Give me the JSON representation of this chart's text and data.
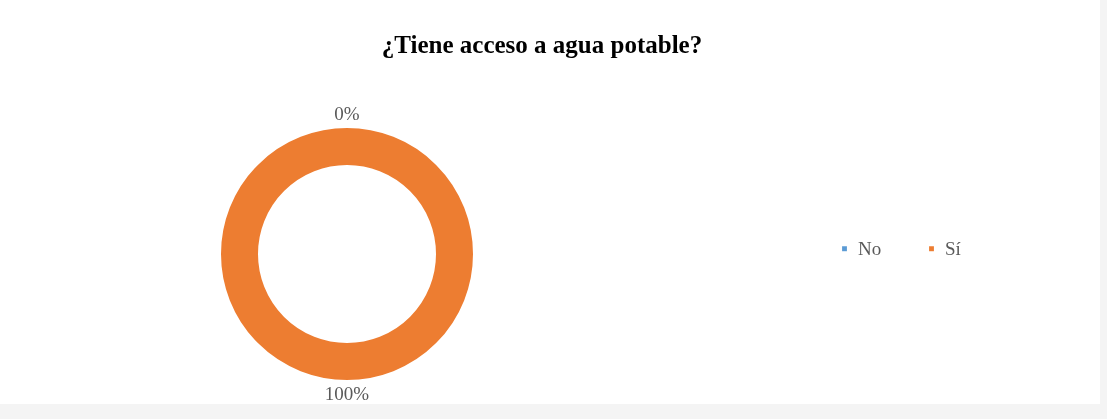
{
  "chart_data": {
    "type": "donut",
    "title": "¿Tiene acceso a agua potable?",
    "categories": [
      "No",
      "Sí"
    ],
    "values": [
      0,
      100
    ],
    "colors": [
      "#5b9bd5",
      "#ed7d31"
    ],
    "value_labels": [
      "0%",
      "100%"
    ],
    "legend": "right"
  }
}
